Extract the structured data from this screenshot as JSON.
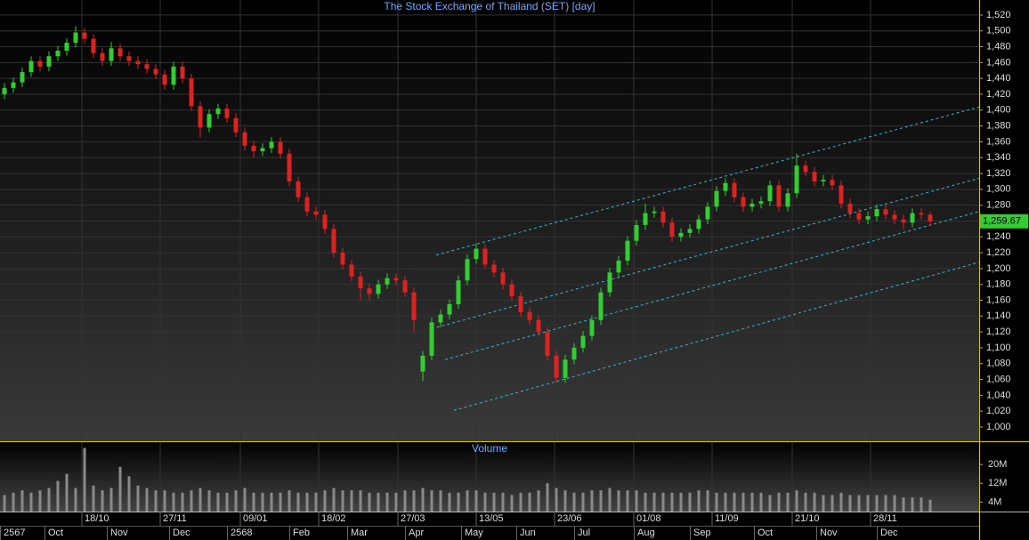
{
  "chart_data": {
    "type": "candlestick",
    "title": "The Stock Exchange of Thailand (SET) [day]",
    "up_color": "#33cc33",
    "down_color": "#dd2222",
    "open": [
      1420,
      1428,
      1435,
      1448,
      1462,
      1455,
      1468,
      1475,
      1485,
      1498,
      1490,
      1472,
      1462,
      1478,
      1468,
      1462,
      1458,
      1452,
      1445,
      1432,
      1455,
      1440,
      1405,
      1378,
      1395,
      1402,
      1390,
      1372,
      1355,
      1348,
      1352,
      1360,
      1345,
      1310,
      1290,
      1272,
      1268,
      1250,
      1220,
      1205,
      1190,
      1175,
      1168,
      1180,
      1188,
      1185,
      1170,
      1070,
      1090,
      1132,
      1142,
      1155,
      1185,
      1212,
      1225,
      1205,
      1195,
      1180,
      1165,
      1145,
      1135,
      1120,
      1090,
      1062,
      1085,
      1100,
      1115,
      1135,
      1170,
      1195,
      1210,
      1235,
      1255,
      1270,
      1272,
      1258,
      1240,
      1245,
      1250,
      1262,
      1278,
      1298,
      1308,
      1290,
      1278,
      1282,
      1285,
      1305,
      1278,
      1295,
      1330,
      1322,
      1310,
      1312,
      1305,
      1282,
      1270,
      1262,
      1266,
      1275,
      1268,
      1262,
      1258,
      1270,
      1268
    ],
    "high": [
      1434,
      1441,
      1454,
      1468,
      1468,
      1474,
      1481,
      1491,
      1506,
      1504,
      1496,
      1478,
      1486,
      1484,
      1474,
      1468,
      1464,
      1458,
      1451,
      1461,
      1461,
      1446,
      1411,
      1401,
      1408,
      1408,
      1396,
      1378,
      1361,
      1358,
      1366,
      1366,
      1351,
      1316,
      1296,
      1278,
      1274,
      1256,
      1226,
      1211,
      1196,
      1181,
      1186,
      1194,
      1194,
      1191,
      1176,
      1096,
      1138,
      1148,
      1161,
      1191,
      1218,
      1232,
      1231,
      1211,
      1201,
      1186,
      1171,
      1151,
      1141,
      1126,
      1096,
      1091,
      1106,
      1121,
      1141,
      1176,
      1201,
      1216,
      1241,
      1261,
      1282,
      1278,
      1278,
      1264,
      1251,
      1256,
      1268,
      1284,
      1304,
      1314,
      1314,
      1296,
      1288,
      1291,
      1311,
      1311,
      1301,
      1345,
      1336,
      1328,
      1318,
      1318,
      1311,
      1288,
      1276,
      1272,
      1281,
      1281,
      1274,
      1268,
      1276,
      1276,
      1272
    ],
    "low": [
      1414,
      1422,
      1429,
      1442,
      1449,
      1449,
      1462,
      1469,
      1479,
      1484,
      1466,
      1456,
      1456,
      1462,
      1456,
      1452,
      1446,
      1439,
      1426,
      1426,
      1434,
      1399,
      1365,
      1372,
      1389,
      1384,
      1366,
      1349,
      1340,
      1342,
      1346,
      1339,
      1304,
      1284,
      1266,
      1262,
      1244,
      1214,
      1199,
      1184,
      1160,
      1160,
      1162,
      1174,
      1179,
      1164,
      1120,
      1058,
      1084,
      1126,
      1136,
      1149,
      1179,
      1206,
      1199,
      1189,
      1174,
      1159,
      1139,
      1129,
      1114,
      1084,
      1056,
      1056,
      1079,
      1094,
      1109,
      1129,
      1164,
      1189,
      1204,
      1229,
      1249,
      1264,
      1252,
      1234,
      1234,
      1239,
      1244,
      1256,
      1272,
      1292,
      1284,
      1272,
      1272,
      1276,
      1279,
      1272,
      1272,
      1289,
      1316,
      1304,
      1304,
      1299,
      1276,
      1264,
      1256,
      1256,
      1260,
      1262,
      1256,
      1250,
      1252,
      1262,
      1254
    ],
    "close": [
      1428,
      1435,
      1448,
      1462,
      1455,
      1468,
      1475,
      1485,
      1498,
      1490,
      1472,
      1462,
      1478,
      1468,
      1462,
      1458,
      1452,
      1445,
      1432,
      1455,
      1440,
      1405,
      1378,
      1395,
      1402,
      1390,
      1372,
      1355,
      1348,
      1352,
      1360,
      1345,
      1310,
      1290,
      1272,
      1268,
      1250,
      1220,
      1205,
      1190,
      1175,
      1168,
      1180,
      1188,
      1185,
      1170,
      1135,
      1090,
      1132,
      1142,
      1155,
      1185,
      1212,
      1225,
      1205,
      1195,
      1180,
      1165,
      1145,
      1135,
      1120,
      1090,
      1062,
      1085,
      1100,
      1115,
      1135,
      1170,
      1195,
      1210,
      1235,
      1255,
      1270,
      1272,
      1258,
      1240,
      1245,
      1250,
      1262,
      1278,
      1298,
      1308,
      1290,
      1278,
      1282,
      1285,
      1305,
      1278,
      1295,
      1330,
      1322,
      1310,
      1312,
      1305,
      1282,
      1270,
      1262,
      1266,
      1275,
      1268,
      1262,
      1258,
      1270,
      1268,
      1259.67
    ],
    "last_label": "1,259.67",
    "xlim": [
      -0.5,
      109.5
    ],
    "xticks": [
      {
        "value": 8.7,
        "label": "18/10"
      },
      {
        "value": 17.5,
        "label": "27/11"
      },
      {
        "value": 26.5,
        "label": "09/01"
      },
      {
        "value": 35.3,
        "label": "18/02"
      },
      {
        "value": 44.2,
        "label": "27/03"
      },
      {
        "value": 53,
        "label": "13/05"
      },
      {
        "value": 61.8,
        "label": "23/06"
      },
      {
        "value": 70.7,
        "label": "01/08"
      },
      {
        "value": 79.5,
        "label": "11/09"
      },
      {
        "value": 88.5,
        "label": "21/10"
      },
      {
        "value": 97.3,
        "label": "28/11"
      }
    ],
    "month_ticks": [
      {
        "value": -0.5,
        "label": "2567"
      },
      {
        "value": 4.5,
        "label": "Oct"
      },
      {
        "value": 11.5,
        "label": "Nov"
      },
      {
        "value": 18.5,
        "label": "Dec"
      },
      {
        "value": 25,
        "label": "2568"
      },
      {
        "value": 32,
        "label": "Feb"
      },
      {
        "value": 38.5,
        "label": "Mar"
      },
      {
        "value": 45,
        "label": "Apr"
      },
      {
        "value": 51.3,
        "label": "May"
      },
      {
        "value": 57.5,
        "label": "Jun"
      },
      {
        "value": 64,
        "label": "Jul"
      },
      {
        "value": 70.7,
        "label": "Aug"
      },
      {
        "value": 77,
        "label": "Sep"
      },
      {
        "value": 84.2,
        "label": "Oct"
      },
      {
        "value": 91.2,
        "label": "Nov"
      },
      {
        "value": 98,
        "label": "Dec"
      }
    ],
    "ylim": [
      982,
      1539
    ],
    "yticks": [
      {
        "value": 1000,
        "label": "1,000"
      },
      {
        "value": 1020,
        "label": "1,020"
      },
      {
        "value": 1040,
        "label": "1,040"
      },
      {
        "value": 1060,
        "label": "1,060"
      },
      {
        "value": 1080,
        "label": "1,080"
      },
      {
        "value": 1100,
        "label": "1,100"
      },
      {
        "value": 1120,
        "label": "1,120"
      },
      {
        "value": 1140,
        "label": "1,140"
      },
      {
        "value": 1160,
        "label": "1,160"
      },
      {
        "value": 1180,
        "label": "1,180"
      },
      {
        "value": 1200,
        "label": "1,200"
      },
      {
        "value": 1220,
        "label": "1,220"
      },
      {
        "value": 1240,
        "label": "1,240"
      },
      {
        "value": 1260,
        "label": "1,260"
      },
      {
        "value": 1280,
        "label": "1,280"
      },
      {
        "value": 1300,
        "label": "1,300"
      },
      {
        "value": 1320,
        "label": "1,320"
      },
      {
        "value": 1340,
        "label": "1,340"
      },
      {
        "value": 1360,
        "label": "1,360"
      },
      {
        "value": 1380,
        "label": "1,380"
      },
      {
        "value": 1400,
        "label": "1,400"
      },
      {
        "value": 1420,
        "label": "1,420"
      },
      {
        "value": 1440,
        "label": "1,440"
      },
      {
        "value": 1460,
        "label": "1,460"
      },
      {
        "value": 1480,
        "label": "1,480"
      },
      {
        "value": 1500,
        "label": "1,500"
      },
      {
        "value": 1520,
        "label": "1,520"
      }
    ],
    "grid": true,
    "channel_color": "#33bbcc",
    "channel_lines": [
      {
        "x": [
          48.5,
          109.5
        ],
        "y": [
          1217,
          1404
        ]
      },
      {
        "x": [
          48,
          109.5
        ],
        "y": [
          1124,
          1314
        ]
      },
      {
        "x": [
          49.5,
          109.5
        ],
        "y": [
          1085,
          1272
        ]
      },
      {
        "x": [
          50.5,
          109.5
        ],
        "y": [
          1021,
          1208
        ]
      }
    ],
    "volume": {
      "title": "Volume",
      "color": "#8a8a8a",
      "values": [
        7,
        8,
        9,
        8,
        9,
        10,
        13,
        16,
        10,
        27,
        11,
        9,
        10,
        19,
        15,
        11,
        10,
        9,
        9,
        8,
        8,
        9,
        10,
        9,
        8,
        8,
        9,
        10,
        8,
        8,
        8,
        8,
        9,
        8,
        8,
        8,
        9,
        10,
        9,
        9,
        9,
        8,
        8,
        8,
        8,
        9,
        9,
        10,
        9,
        9,
        8,
        8,
        9,
        9,
        8,
        8,
        8,
        7,
        8,
        8,
        9,
        12,
        10,
        9,
        8,
        8,
        9,
        9,
        10,
        9,
        9,
        9,
        8,
        8,
        8,
        8,
        8,
        8,
        9,
        9,
        8,
        8,
        8,
        8,
        8,
        8,
        7,
        8,
        8,
        9,
        8,
        8,
        7,
        7,
        8,
        7,
        7,
        7,
        7,
        7,
        7,
        6,
        6,
        6,
        5
      ],
      "ylim": [
        0,
        29.5
      ],
      "yticks": [
        {
          "value": 4,
          "label": "4M"
        },
        {
          "value": 12,
          "label": "12M"
        },
        {
          "value": 20,
          "label": "20M"
        }
      ]
    }
  }
}
